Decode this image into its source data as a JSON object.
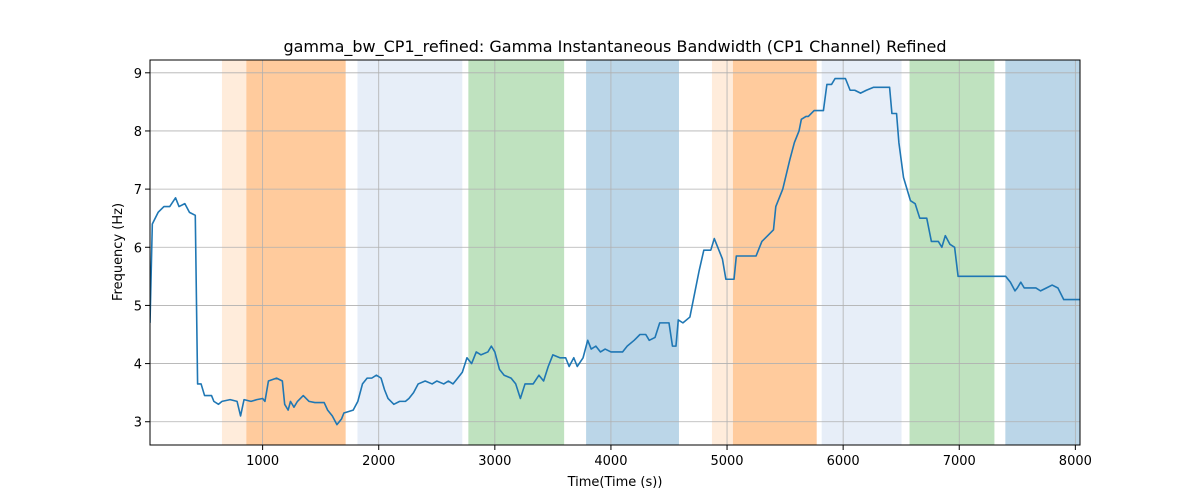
{
  "chart_data": {
    "type": "line",
    "title": "gamma_bw_CP1_refined: Gamma Instantaneous Bandwidth (CP1 Channel) Refined",
    "xlabel": "Time(Time (s))",
    "ylabel": "Frequency (Hz)",
    "xlim": [
      30,
      8040
    ],
    "ylim": [
      2.6,
      9.22
    ],
    "xticks": [
      1000,
      2000,
      3000,
      4000,
      5000,
      6000,
      7000,
      8000
    ],
    "yticks": [
      3,
      4,
      5,
      6,
      7,
      8,
      9
    ],
    "grid": true,
    "spans": [
      {
        "x0": 650,
        "x1": 1715,
        "color": "#ff7f0e",
        "alpha": 0.15
      },
      {
        "x0": 860,
        "x1": 1715,
        "color": "#ff7f0e",
        "alpha": 0.3
      },
      {
        "x0": 1817,
        "x1": 2720,
        "color": "#aec7e8",
        "alpha": 0.3
      },
      {
        "x0": 2772,
        "x1": 3597,
        "color": "#2ca02c",
        "alpha": 0.3
      },
      {
        "x0": 3786,
        "x1": 4586,
        "color": "#1f77b4",
        "alpha": 0.3
      },
      {
        "x0": 4870,
        "x1": 5772,
        "color": "#ff7f0e",
        "alpha": 0.15
      },
      {
        "x0": 5051,
        "x1": 5772,
        "color": "#ff7f0e",
        "alpha": 0.3
      },
      {
        "x0": 5815,
        "x1": 6503,
        "color": "#aec7e8",
        "alpha": 0.3
      },
      {
        "x0": 6572,
        "x1": 7303,
        "color": "#2ca02c",
        "alpha": 0.3
      },
      {
        "x0": 7397,
        "x1": 8040,
        "color": "#1f77b4",
        "alpha": 0.3
      }
    ],
    "series": [
      {
        "color": "#1f77b4",
        "x": [
          30,
          50,
          100,
          150,
          200,
          250,
          280,
          330,
          370,
          420,
          440,
          470,
          500,
          560,
          580,
          620,
          650,
          720,
          780,
          810,
          840,
          900,
          950,
          1000,
          1020,
          1050,
          1120,
          1170,
          1190,
          1220,
          1240,
          1270,
          1300,
          1350,
          1400,
          1450,
          1530,
          1560,
          1600,
          1640,
          1680,
          1700,
          1780,
          1820,
          1860,
          1900,
          1940,
          1980,
          2020,
          2050,
          2080,
          2130,
          2180,
          2230,
          2260,
          2300,
          2340,
          2400,
          2460,
          2500,
          2560,
          2600,
          2640,
          2680,
          2720,
          2760,
          2800,
          2840,
          2880,
          2940,
          2970,
          3000,
          3040,
          3080,
          3140,
          3180,
          3220,
          3260,
          3330,
          3380,
          3420,
          3460,
          3500,
          3560,
          3610,
          3640,
          3680,
          3710,
          3760,
          3800,
          3830,
          3870,
          3910,
          3950,
          4000,
          4100,
          4140,
          4200,
          4250,
          4300,
          4330,
          4380,
          4420,
          4500,
          4530,
          4560,
          4580,
          4620,
          4680,
          4720,
          4760,
          4800,
          4860,
          4890,
          4930,
          4960,
          4990,
          5060,
          5080,
          5250,
          5300,
          5350,
          5400,
          5420,
          5480,
          5540,
          5580,
          5620,
          5640,
          5680,
          5700,
          5750,
          5830,
          5860,
          5900,
          5930,
          6020,
          6060,
          6100,
          6150,
          6200,
          6260,
          6400,
          6420,
          6460,
          6480,
          6520,
          6550,
          6580,
          6620,
          6660,
          6720,
          6760,
          6820,
          6850,
          6880,
          6920,
          6960,
          6990,
          7400,
          7440,
          7480,
          7500,
          7530,
          7560,
          7660,
          7700,
          7750,
          7800,
          7850,
          7900,
          8040
        ],
        "values": [
          4.7,
          6.4,
          6.6,
          6.7,
          6.7,
          6.85,
          6.7,
          6.75,
          6.6,
          6.55,
          3.65,
          3.65,
          3.45,
          3.45,
          3.35,
          3.3,
          3.35,
          3.38,
          3.35,
          3.1,
          3.38,
          3.35,
          3.38,
          3.4,
          3.35,
          3.7,
          3.75,
          3.7,
          3.3,
          3.2,
          3.35,
          3.25,
          3.35,
          3.45,
          3.35,
          3.33,
          3.33,
          3.2,
          3.1,
          2.95,
          3.05,
          3.15,
          3.2,
          3.35,
          3.65,
          3.75,
          3.75,
          3.8,
          3.75,
          3.55,
          3.4,
          3.3,
          3.35,
          3.35,
          3.4,
          3.5,
          3.65,
          3.7,
          3.65,
          3.7,
          3.65,
          3.7,
          3.65,
          3.75,
          3.85,
          4.1,
          4.0,
          4.2,
          4.15,
          4.2,
          4.3,
          4.2,
          3.9,
          3.8,
          3.75,
          3.65,
          3.4,
          3.65,
          3.65,
          3.8,
          3.7,
          3.95,
          4.15,
          4.1,
          4.1,
          3.95,
          4.1,
          3.95,
          4.1,
          4.4,
          4.25,
          4.3,
          4.2,
          4.25,
          4.2,
          4.2,
          4.3,
          4.4,
          4.5,
          4.5,
          4.4,
          4.45,
          4.7,
          4.7,
          4.3,
          4.3,
          4.75,
          4.7,
          4.8,
          5.2,
          5.6,
          5.95,
          5.95,
          6.15,
          5.95,
          5.8,
          5.45,
          5.45,
          5.85,
          5.85,
          6.1,
          6.2,
          6.3,
          6.7,
          7.0,
          7.5,
          7.8,
          8.0,
          8.2,
          8.25,
          8.25,
          8.35,
          8.35,
          8.8,
          8.8,
          8.9,
          8.9,
          8.7,
          8.7,
          8.65,
          8.7,
          8.75,
          8.75,
          8.3,
          8.3,
          7.8,
          7.2,
          7.0,
          6.8,
          6.75,
          6.5,
          6.5,
          6.1,
          6.1,
          6.0,
          6.2,
          6.05,
          6.0,
          5.5,
          5.5,
          5.4,
          5.25,
          5.3,
          5.4,
          5.3,
          5.3,
          5.25,
          5.3,
          5.35,
          5.3,
          5.1,
          5.1
        ]
      }
    ]
  }
}
